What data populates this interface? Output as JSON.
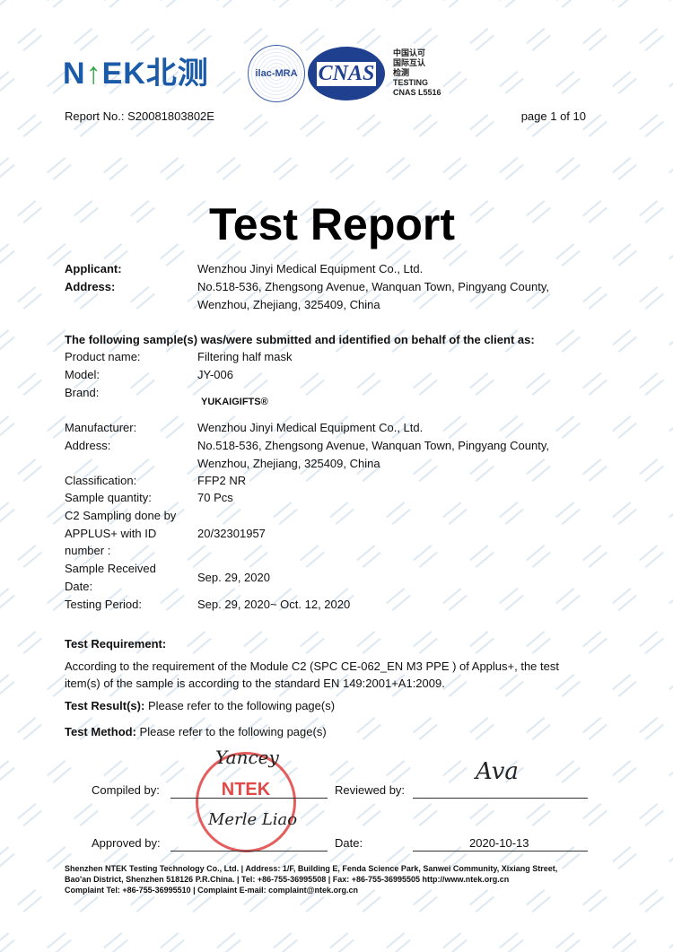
{
  "header": {
    "logo_text": "NTEK北测",
    "ilac_text": "ilac-MRA",
    "cnas_text": "CNAS",
    "accreditation_lines": [
      "中国认可",
      "国际互认",
      "检测",
      "TESTING",
      "CNAS L5516"
    ],
    "report_no": "Report No.: S20081803802E",
    "page": "page 1 of 10"
  },
  "watermark": "NTEK",
  "title": "Test Report",
  "applicant": {
    "label": "Applicant:",
    "value": "Wenzhou Jinyi Medical Equipment Co., Ltd."
  },
  "address": {
    "label": "Address:",
    "lines": [
      "No.518-536, Zhengsong Avenue, Wanquan Town, Pingyang County,",
      "Wenzhou, Zhejiang, 325409, China"
    ]
  },
  "sample_intro": "The following sample(s) was/were submitted and identified on behalf of the client as:",
  "fields": [
    {
      "label": "Product name:",
      "value": "Filtering half mask"
    },
    {
      "label": "Model:",
      "value": "JY-006"
    },
    {
      "label": "Brand:",
      "value": "YUKAIGIFTS®"
    },
    {
      "label": "Manufacturer:",
      "value": "Wenzhou Jinyi Medical Equipment Co., Ltd."
    },
    {
      "label": "Address:",
      "value": "No.518-536, Zhengsong Avenue, Wanquan Town, Pingyang County,",
      "value2": "Wenzhou, Zhejiang, 325409, China"
    },
    {
      "label": "Classification:",
      "value": "FFP2 NR"
    },
    {
      "label": "Sample quantity:",
      "value": "70 Pcs"
    },
    {
      "label": "C2 Sampling done by",
      "label2": "APPLUS+ with ID",
      "label3": "number :",
      "value": "20/32301957"
    },
    {
      "label": "Sample Received",
      "label2": "Date:",
      "value": "Sep. 29, 2020"
    },
    {
      "label": "Testing Period:",
      "value": "Sep. 29, 2020~ Oct. 12, 2020"
    }
  ],
  "requirement": {
    "heading": "Test Requirement:",
    "lines": [
      "According to the requirement of the Module C2 (SPC CE-062_EN M3 PPE ) of Applus+, the test",
      "item(s) of the sample is according to the standard EN 149:2001+A1:2009."
    ]
  },
  "result": {
    "label": "Test Result(s):",
    "value": " Please refer to the following page(s)"
  },
  "method": {
    "label": "Test Method:",
    "value": " Please refer to the following page(s)"
  },
  "signatures": {
    "compiled_label": "Compiled by:",
    "compiled_sig": "Yancey",
    "reviewed_label": "Reviewed by:",
    "reviewed_sig": "Ava",
    "approved_label": "Approved by:",
    "approved_sig": "Merle Liao",
    "date_label": "Date:",
    "date_value": "2020-10-13",
    "stamp_text": "NTEK"
  },
  "footer": [
    "Shenzhen NTEK Testing Technology Co., Ltd. | Address: 1/F, Building E, Fenda Science Park, Sanwei Community, Xixiang Street,",
    "Bao'an District, Shenzhen 518126 P.R.China. | Tel: +86-755-36995508 | Fax: +86-755-36995505 http://www.ntek.org.cn",
    "Complaint Tel: +86-755-36995510 | Complaint E-mail: complaint@ntek.org.cn"
  ]
}
